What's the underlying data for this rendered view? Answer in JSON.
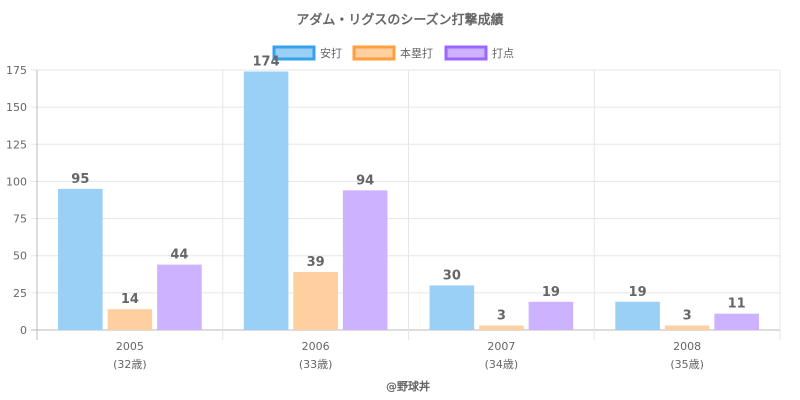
{
  "chart_data": {
    "type": "bar",
    "title": "アダム・リグスのシーズン打撃成績",
    "categories": [
      "2005",
      "2006",
      "2007",
      "2008"
    ],
    "category_sublabels": [
      "(32歳)",
      "(33歳)",
      "(34歳)",
      "(35歳)"
    ],
    "series": [
      {
        "name": "安打",
        "values": [
          95,
          174,
          30,
          19
        ],
        "fill": "#9ad0f5",
        "stroke": "#36a2eb"
      },
      {
        "name": "本塁打",
        "values": [
          14,
          39,
          3,
          3
        ],
        "fill": "#ffcf9f",
        "stroke": "#ff9f40"
      },
      {
        "name": "打点",
        "values": [
          44,
          94,
          19,
          11
        ],
        "fill": "#ccb2ff",
        "stroke": "#9966ff"
      }
    ],
    "ylim": [
      0,
      175
    ],
    "yticks": [
      0,
      25,
      50,
      75,
      100,
      125,
      150,
      175
    ],
    "grid": true,
    "legend": "top-center",
    "show_data_labels": true
  },
  "credit": "@野球丼"
}
